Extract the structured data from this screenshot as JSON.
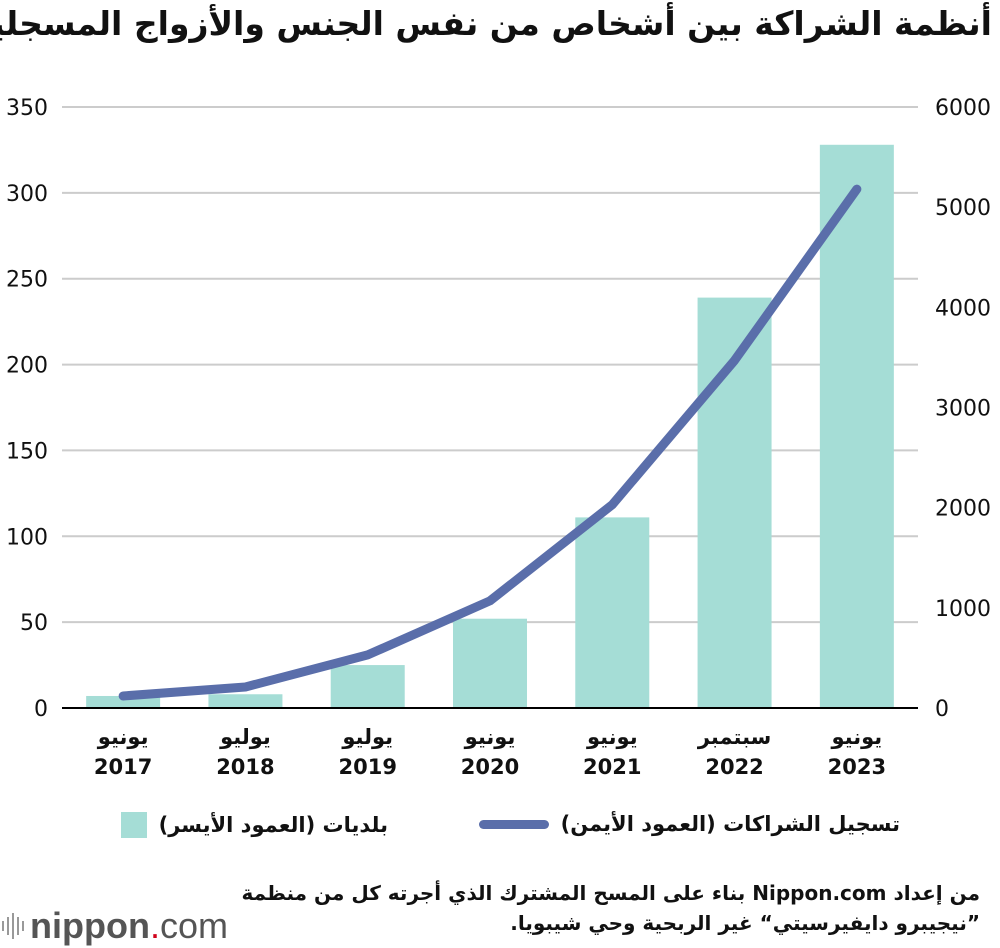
{
  "title": "أنظمة الشراكة بين أشخاص من نفس الجنس والأزواج المسجلين",
  "chart_data": {
    "type": "bar+line",
    "categories": [
      [
        "يونيو",
        "2017"
      ],
      [
        "يوليو",
        "2018"
      ],
      [
        "يوليو",
        "2019"
      ],
      [
        "يونيو",
        "2020"
      ],
      [
        "يونيو",
        "2021"
      ],
      [
        "سبتمبر",
        "2022"
      ],
      [
        "يونيو",
        "2023"
      ]
    ],
    "series": [
      {
        "name": "بلديات (العمود الأيسر)",
        "type": "bar",
        "axis": "left",
        "color": "#a5ddd6",
        "values": [
          7,
          8,
          25,
          52,
          111,
          239,
          328
        ]
      },
      {
        "name": "تسجيل الشراكات (العمود الأيمن)",
        "type": "line",
        "axis": "right",
        "color": "#5a6eaa",
        "values": [
          120,
          210,
          530,
          1070,
          2030,
          3470,
          5180
        ]
      }
    ],
    "left_axis": {
      "ylim": [
        0,
        350
      ],
      "ticks": [
        "0",
        "50",
        "100",
        "150",
        "200",
        "250",
        "300",
        "350"
      ]
    },
    "right_axis": {
      "ylim": [
        0,
        6000
      ],
      "ticks": [
        "0",
        "1000",
        "2000",
        "3000",
        "4000",
        "5000",
        "6000"
      ]
    },
    "grid": true,
    "legend_position": "bottom"
  },
  "source": {
    "line1": "من إعداد Nippon.com بناء على المسح المشترك الذي أجرته كل من منظمة",
    "line2": "”نيجيبرو دايفيرسيتي“ غير الربحية وحي شيبويا."
  },
  "logo": {
    "name": "nippon",
    "dot": ".",
    "tld": "com"
  }
}
